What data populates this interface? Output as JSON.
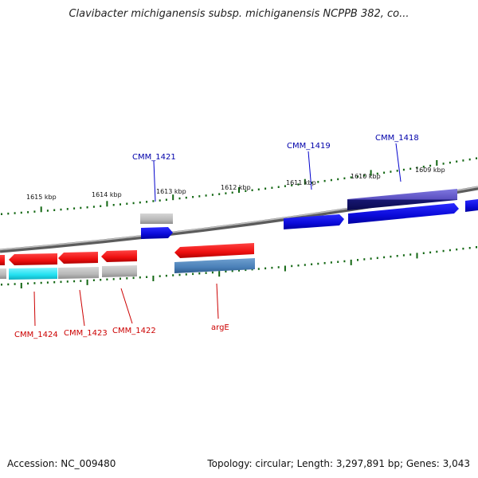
{
  "title": "Clavibacter michiganensis subsp. michiganensis NCPPB 382, co...",
  "footer": {
    "accession": "Accession: NC_009480",
    "summary": "Topology: circular; Length: 3,297,891 bp; Genes: 3,043"
  },
  "ticks": [
    {
      "label": "1615 kbp"
    },
    {
      "label": "1614 kbp"
    },
    {
      "label": "1613 kbp"
    },
    {
      "label": "1612 kbp"
    },
    {
      "label": "1611 kbp"
    },
    {
      "label": "1610 kbp"
    },
    {
      "label": "1609 kbp"
    }
  ],
  "gene_labels": [
    {
      "name": "CMM_1421",
      "strand": "forward"
    },
    {
      "name": "CMM_1419",
      "strand": "forward"
    },
    {
      "name": "CMM_1418",
      "strand": "forward"
    },
    {
      "name": "CMM_1424",
      "strand": "reverse"
    },
    {
      "name": "CMM_1423",
      "strand": "reverse"
    },
    {
      "name": "CMM_1422",
      "strand": "reverse"
    },
    {
      "name": "argE",
      "strand": "reverse"
    }
  ],
  "colors": {
    "forward_gene": "#1010e0",
    "reverse_gene": "#ee1111",
    "forward_cds": "#5a4fc0",
    "reverse_cds": "#4a80b8",
    "pseudo": "#b8b8b8",
    "cyan_feature": "#22e0f0",
    "backbone": "#888888",
    "tick": "#116611"
  }
}
